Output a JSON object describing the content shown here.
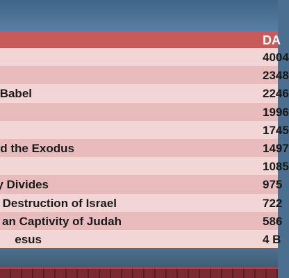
{
  "table": {
    "date_header": "DA",
    "rows": [
      {
        "event": "",
        "date": "4004"
      },
      {
        "event": "",
        "date": "2348"
      },
      {
        "event": "Babel",
        "date": "2246"
      },
      {
        "event": "",
        "date": "1996"
      },
      {
        "event": "",
        "date": "1745"
      },
      {
        "event": "d the Exodus",
        "date": "1497"
      },
      {
        "event": "",
        "date": "1085"
      },
      {
        "event": "y Divides",
        "date": "975"
      },
      {
        "event": "Destruction of Israel",
        "date": "722"
      },
      {
        "event": "an Captivity of Judah",
        "date": "586"
      },
      {
        "event": "esus",
        "date": "4 B"
      }
    ]
  }
}
